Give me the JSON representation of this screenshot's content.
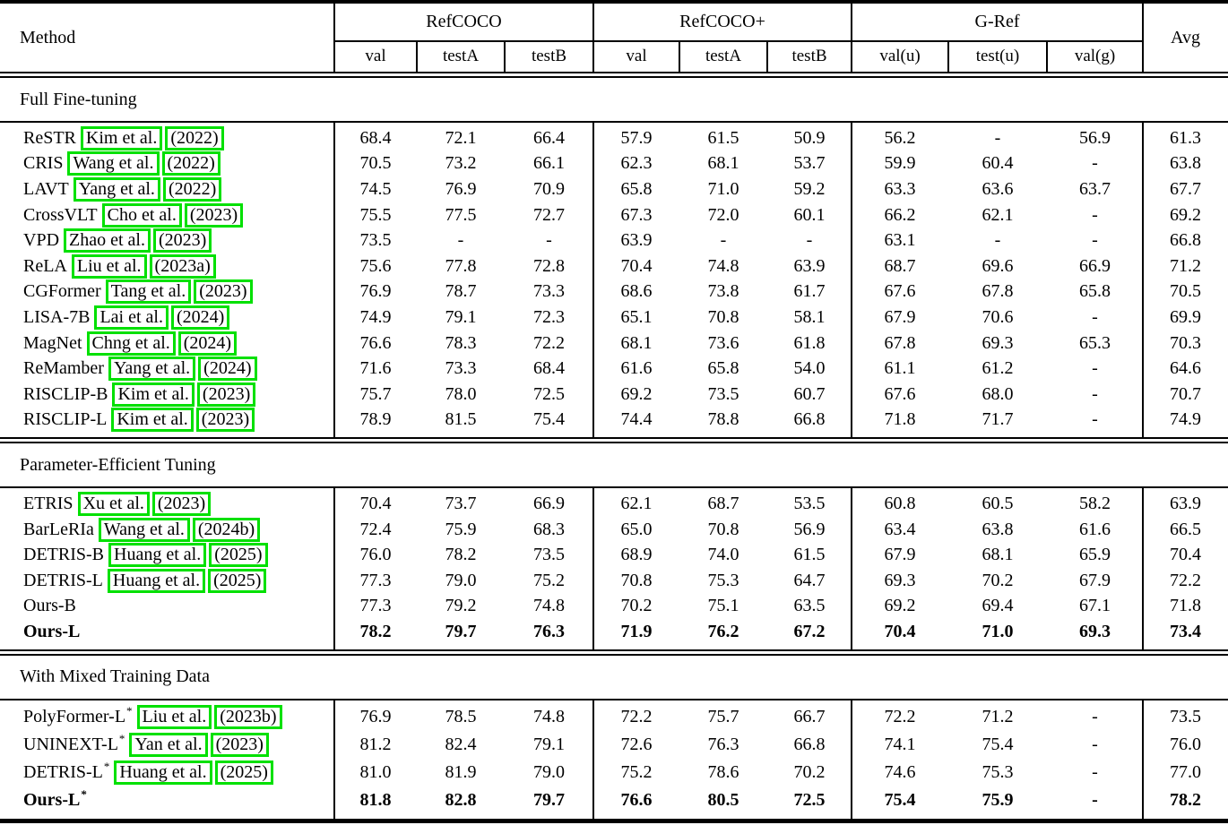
{
  "annotation": {
    "citation_box_color": "#00e000"
  },
  "table": {
    "header": {
      "method_label": "Method",
      "avg_label": "Avg",
      "groups": [
        {
          "label": "RefCOCO",
          "cols": [
            "val",
            "testA",
            "testB"
          ]
        },
        {
          "label": "RefCOCO+",
          "cols": [
            "val",
            "testA",
            "testB"
          ]
        },
        {
          "label": "G-Ref",
          "cols": [
            "val(u)",
            "test(u)",
            "val(g)"
          ]
        }
      ]
    },
    "sections": [
      {
        "title": "Full Fine-tuning",
        "rows": [
          {
            "method": "ReSTR",
            "star": false,
            "bold": false,
            "cite_author": "Kim et al.",
            "cite_year": "(2022)",
            "values": [
              "68.4",
              "72.1",
              "66.4",
              "57.9",
              "61.5",
              "50.9",
              "56.2",
              "-",
              "56.9",
              "61.3"
            ]
          },
          {
            "method": "CRIS",
            "star": false,
            "bold": false,
            "cite_author": "Wang et al.",
            "cite_year": "(2022)",
            "values": [
              "70.5",
              "73.2",
              "66.1",
              "62.3",
              "68.1",
              "53.7",
              "59.9",
              "60.4",
              "-",
              "63.8"
            ]
          },
          {
            "method": "LAVT",
            "star": false,
            "bold": false,
            "cite_author": "Yang et al.",
            "cite_year": "(2022)",
            "values": [
              "74.5",
              "76.9",
              "70.9",
              "65.8",
              "71.0",
              "59.2",
              "63.3",
              "63.6",
              "63.7",
              "67.7"
            ]
          },
          {
            "method": "CrossVLT",
            "star": false,
            "bold": false,
            "cite_author": "Cho et al.",
            "cite_year": "(2023)",
            "values": [
              "75.5",
              "77.5",
              "72.7",
              "67.3",
              "72.0",
              "60.1",
              "66.2",
              "62.1",
              "-",
              "69.2"
            ]
          },
          {
            "method": "VPD",
            "star": false,
            "bold": false,
            "cite_author": "Zhao et al.",
            "cite_year": "(2023)",
            "values": [
              "73.5",
              "-",
              "-",
              "63.9",
              "-",
              "-",
              "63.1",
              "-",
              "-",
              "66.8"
            ]
          },
          {
            "method": "ReLA",
            "star": false,
            "bold": false,
            "cite_author": "Liu et al.",
            "cite_year": "(2023a)",
            "values": [
              "75.6",
              "77.8",
              "72.8",
              "70.4",
              "74.8",
              "63.9",
              "68.7",
              "69.6",
              "66.9",
              "71.2"
            ]
          },
          {
            "method": "CGFormer",
            "star": false,
            "bold": false,
            "cite_author": "Tang et al.",
            "cite_year": "(2023)",
            "values": [
              "76.9",
              "78.7",
              "73.3",
              "68.6",
              "73.8",
              "61.7",
              "67.6",
              "67.8",
              "65.8",
              "70.5"
            ]
          },
          {
            "method": "LISA-7B",
            "star": false,
            "bold": false,
            "cite_author": "Lai et al.",
            "cite_year": "(2024)",
            "values": [
              "74.9",
              "79.1",
              "72.3",
              "65.1",
              "70.8",
              "58.1",
              "67.9",
              "70.6",
              "-",
              "69.9"
            ]
          },
          {
            "method": "MagNet",
            "star": false,
            "bold": false,
            "cite_author": "Chng et al.",
            "cite_year": "(2024)",
            "values": [
              "76.6",
              "78.3",
              "72.2",
              "68.1",
              "73.6",
              "61.8",
              "67.8",
              "69.3",
              "65.3",
              "70.3"
            ]
          },
          {
            "method": "ReMamber",
            "star": false,
            "bold": false,
            "cite_author": "Yang et al.",
            "cite_year": "(2024)",
            "values": [
              "71.6",
              "73.3",
              "68.4",
              "61.6",
              "65.8",
              "54.0",
              "61.1",
              "61.2",
              "-",
              "64.6"
            ]
          },
          {
            "method": "RISCLIP-B",
            "star": false,
            "bold": false,
            "cite_author": "Kim et al.",
            "cite_year": "(2023)",
            "values": [
              "75.7",
              "78.0",
              "72.5",
              "69.2",
              "73.5",
              "60.7",
              "67.6",
              "68.0",
              "-",
              "70.7"
            ]
          },
          {
            "method": "RISCLIP-L",
            "star": false,
            "bold": false,
            "cite_author": "Kim et al.",
            "cite_year": "(2023)",
            "values": [
              "78.9",
              "81.5",
              "75.4",
              "74.4",
              "78.8",
              "66.8",
              "71.8",
              "71.7",
              "-",
              "74.9"
            ]
          }
        ]
      },
      {
        "title": "Parameter-Efficient Tuning",
        "rows": [
          {
            "method": "ETRIS",
            "star": false,
            "bold": false,
            "cite_author": "Xu et al.",
            "cite_year": "(2023)",
            "values": [
              "70.4",
              "73.7",
              "66.9",
              "62.1",
              "68.7",
              "53.5",
              "60.8",
              "60.5",
              "58.2",
              "63.9"
            ]
          },
          {
            "method": "BarLeRIa",
            "star": false,
            "bold": false,
            "cite_author": "Wang et al.",
            "cite_year": "(2024b)",
            "values": [
              "72.4",
              "75.9",
              "68.3",
              "65.0",
              "70.8",
              "56.9",
              "63.4",
              "63.8",
              "61.6",
              "66.5"
            ]
          },
          {
            "method": "DETRIS-B",
            "star": false,
            "bold": false,
            "cite_author": "Huang et al.",
            "cite_year": "(2025)",
            "values": [
              "76.0",
              "78.2",
              "73.5",
              "68.9",
              "74.0",
              "61.5",
              "67.9",
              "68.1",
              "65.9",
              "70.4"
            ]
          },
          {
            "method": "DETRIS-L",
            "star": false,
            "bold": false,
            "cite_author": "Huang et al.",
            "cite_year": "(2025)",
            "values": [
              "77.3",
              "79.0",
              "75.2",
              "70.8",
              "75.3",
              "64.7",
              "69.3",
              "70.2",
              "67.9",
              "72.2"
            ]
          },
          {
            "method": "Ours-B",
            "star": false,
            "bold": false,
            "cite_author": null,
            "cite_year": null,
            "values": [
              "77.3",
              "79.2",
              "74.8",
              "70.2",
              "75.1",
              "63.5",
              "69.2",
              "69.4",
              "67.1",
              "71.8"
            ]
          },
          {
            "method": "Ours-L",
            "star": false,
            "bold": true,
            "cite_author": null,
            "cite_year": null,
            "values": [
              "78.2",
              "79.7",
              "76.3",
              "71.9",
              "76.2",
              "67.2",
              "70.4",
              "71.0",
              "69.3",
              "73.4"
            ]
          }
        ]
      },
      {
        "title": "With Mixed Training Data",
        "rows": [
          {
            "method": "PolyFormer-L",
            "star": true,
            "bold": false,
            "cite_author": "Liu et al.",
            "cite_year": "(2023b)",
            "values": [
              "76.9",
              "78.5",
              "74.8",
              "72.2",
              "75.7",
              "66.7",
              "72.2",
              "71.2",
              "-",
              "73.5"
            ]
          },
          {
            "method": "UNINEXT-L",
            "star": true,
            "bold": false,
            "cite_author": "Yan et al.",
            "cite_year": "(2023)",
            "values": [
              "81.2",
              "82.4",
              "79.1",
              "72.6",
              "76.3",
              "66.8",
              "74.1",
              "75.4",
              "-",
              "76.0"
            ]
          },
          {
            "method": "DETRIS-L",
            "star": true,
            "bold": false,
            "cite_author": "Huang et al.",
            "cite_year": "(2025)",
            "values": [
              "81.0",
              "81.9",
              "79.0",
              "75.2",
              "78.6",
              "70.2",
              "74.6",
              "75.3",
              "-",
              "77.0"
            ]
          },
          {
            "method": "Ours-L",
            "star": true,
            "bold": true,
            "cite_author": null,
            "cite_year": null,
            "values": [
              "81.8",
              "82.8",
              "79.7",
              "76.6",
              "80.5",
              "72.5",
              "75.4",
              "75.9",
              "-",
              "78.2"
            ]
          }
        ]
      }
    ]
  }
}
